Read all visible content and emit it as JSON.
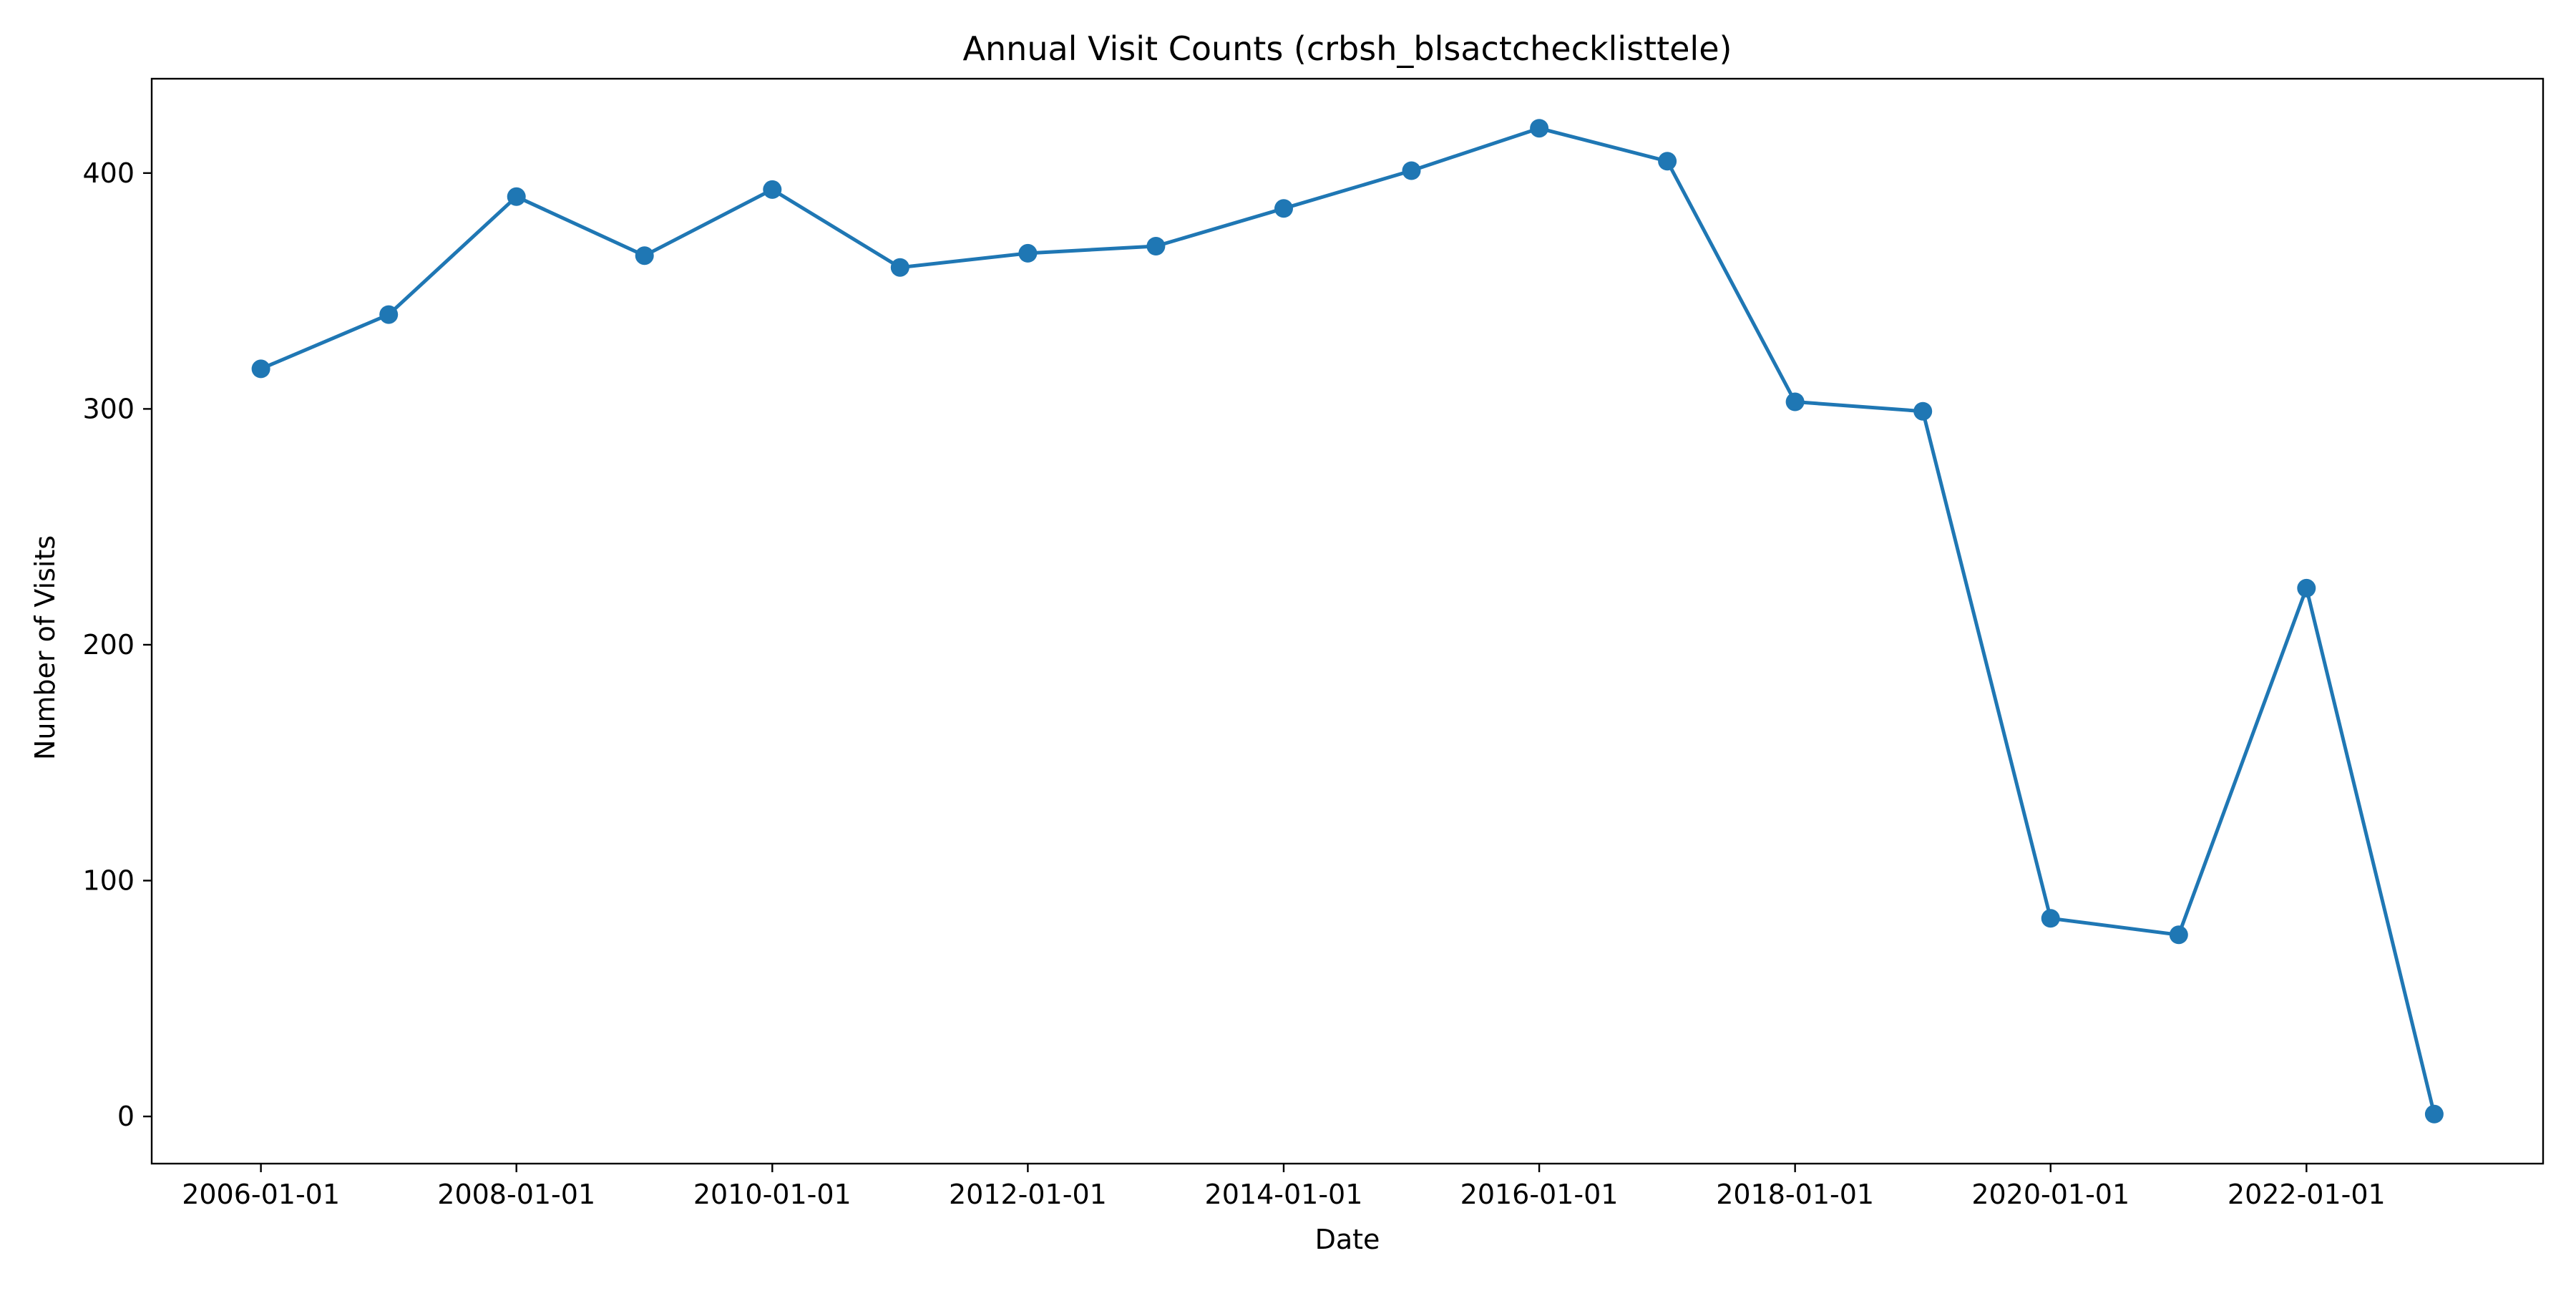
{
  "chart_data": {
    "type": "line",
    "title": "Annual Visit Counts (crbsh_blsactchecklisttele)",
    "xlabel": "Date",
    "ylabel": "Number of Visits",
    "x": [
      "2006-01-01",
      "2007-01-01",
      "2008-01-01",
      "2009-01-01",
      "2010-01-01",
      "2011-01-01",
      "2012-01-01",
      "2013-01-01",
      "2014-01-01",
      "2015-01-01",
      "2016-01-01",
      "2017-01-01",
      "2018-01-01",
      "2019-01-01",
      "2020-01-01",
      "2021-01-01",
      "2022-01-01",
      "2023-01-01"
    ],
    "series": [
      {
        "values": [
          317,
          340,
          390,
          365,
          393,
          360,
          366,
          369,
          385,
          401,
          419,
          405,
          303,
          299,
          84,
          77,
          224,
          1
        ],
        "color": "#1f77b4",
        "marker": "circle"
      }
    ],
    "xticks": [
      "2006-01-01",
      "2008-01-01",
      "2010-01-01",
      "2012-01-01",
      "2014-01-01",
      "2016-01-01",
      "2018-01-01",
      "2020-01-01",
      "2022-01-01"
    ],
    "yticks": [
      0,
      100,
      200,
      300,
      400
    ],
    "xlim": [
      "2005-02-23",
      "2023-11-08"
    ],
    "ylim": [
      -20,
      440
    ],
    "grid": false,
    "legend": "none"
  }
}
